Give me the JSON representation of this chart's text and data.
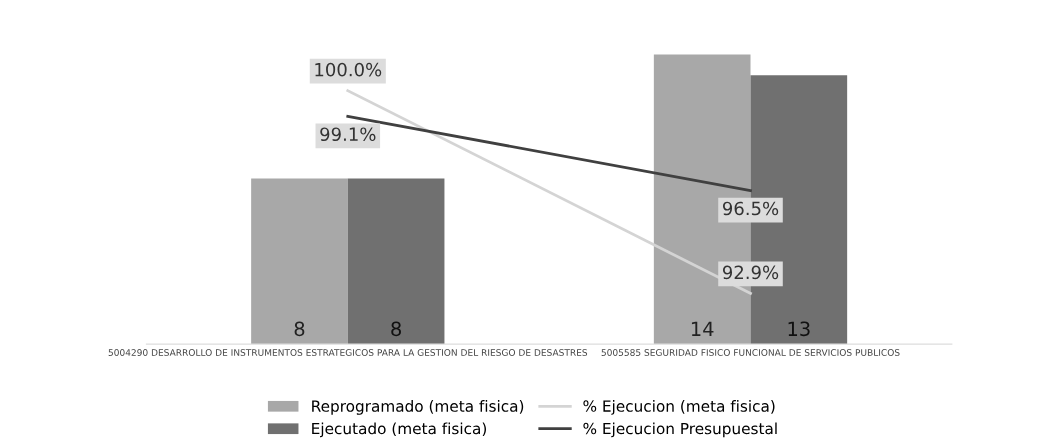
{
  "chart_data": {
    "type": "bar",
    "categories": [
      "5004290 DESARROLLO DE INSTRUMENTOS ESTRATEGICOS PARA LA GESTION DEL RIESGO DE DESASTRES",
      "5005585 SEGURIDAD FISICO FUNCIONAL DE SERVICIOS PUBLICOS"
    ],
    "series": [
      {
        "name": "Reprogramado (meta fisica)",
        "color": "#a8a8a8",
        "values": [
          8,
          14
        ],
        "value_labels": [
          "8",
          "14"
        ]
      },
      {
        "name": "Ejecutado (meta fisica)",
        "color": "#707070",
        "values": [
          8,
          13
        ],
        "value_labels": [
          "8",
          "13"
        ]
      },
      {
        "name": "% Ejecucion (meta fisica)",
        "type": "line",
        "axis": "y2",
        "color": "#d4d4d4",
        "values": [
          100.0,
          92.9
        ],
        "value_labels": [
          "100.0%",
          "92.9%"
        ]
      },
      {
        "name": "% Ejecucion Presupuestal",
        "type": "line",
        "axis": "y2",
        "color": "#404040",
        "values": [
          99.1,
          96.5
        ],
        "value_labels": [
          "99.1%",
          "96.5%"
        ]
      }
    ],
    "tick_labels": "x",
    "grid": false,
    "legend": "bottom"
  }
}
